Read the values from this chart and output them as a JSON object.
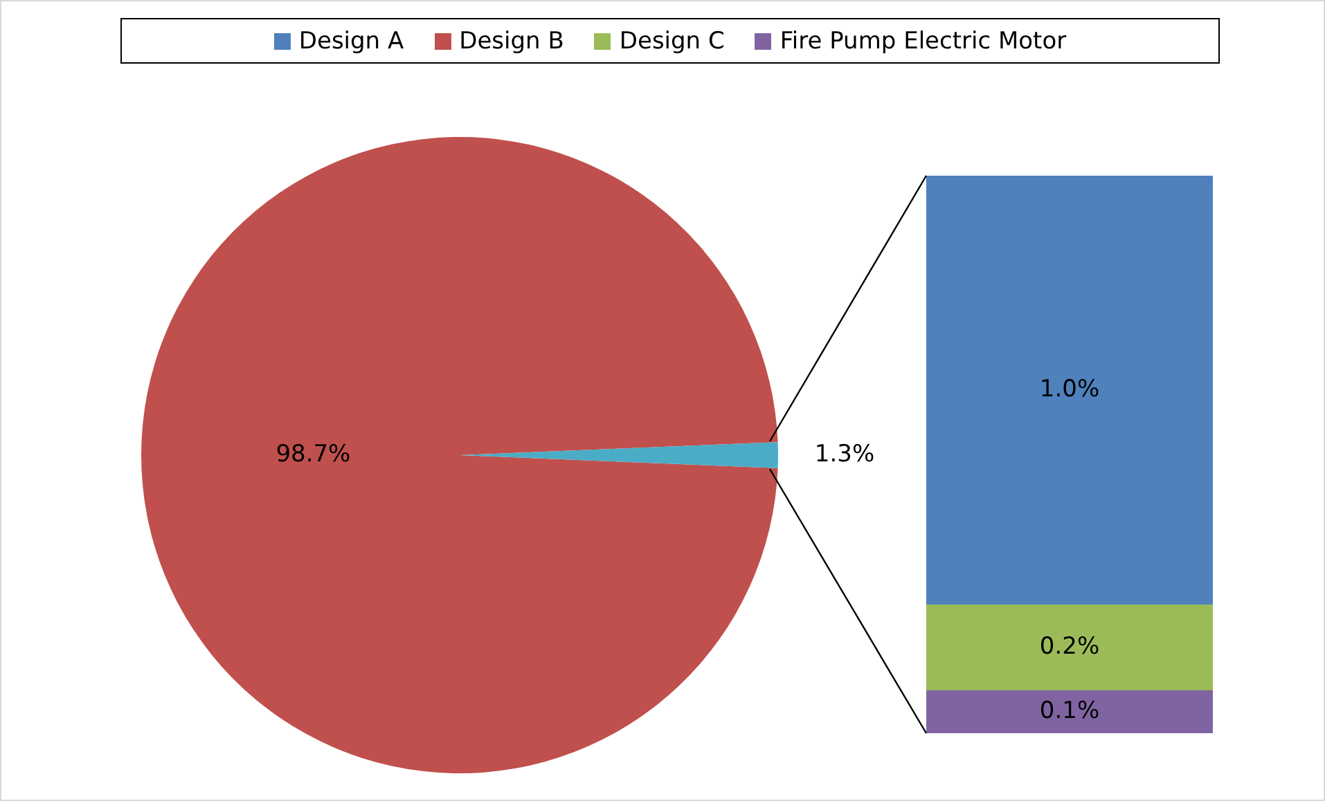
{
  "chart_data": [
    {
      "type": "pie",
      "categories": [
        "Design B",
        null
      ],
      "values": [
        98.7,
        1.3
      ],
      "colors": [
        "#c0504d",
        "#4bacc6"
      ],
      "value_labels": [
        "98.7%",
        "1.3%"
      ],
      "legend": "top"
    },
    {
      "type": "bar",
      "stacked": true,
      "legend": "top",
      "categories": [
        null
      ],
      "series": [
        {
          "name": "Fire Pump Electric Motor",
          "color": "#8064a2",
          "values": [
            0.1
          ],
          "value_labels": [
            "0.1%"
          ]
        },
        {
          "name": "Design C",
          "color": "#9bbb59",
          "values": [
            0.2
          ],
          "value_labels": [
            "0.2%"
          ]
        },
        {
          "name": "Design A",
          "color": "#4f81bd",
          "values": [
            1.0
          ],
          "value_labels": [
            "1.0%"
          ]
        }
      ]
    }
  ]
}
